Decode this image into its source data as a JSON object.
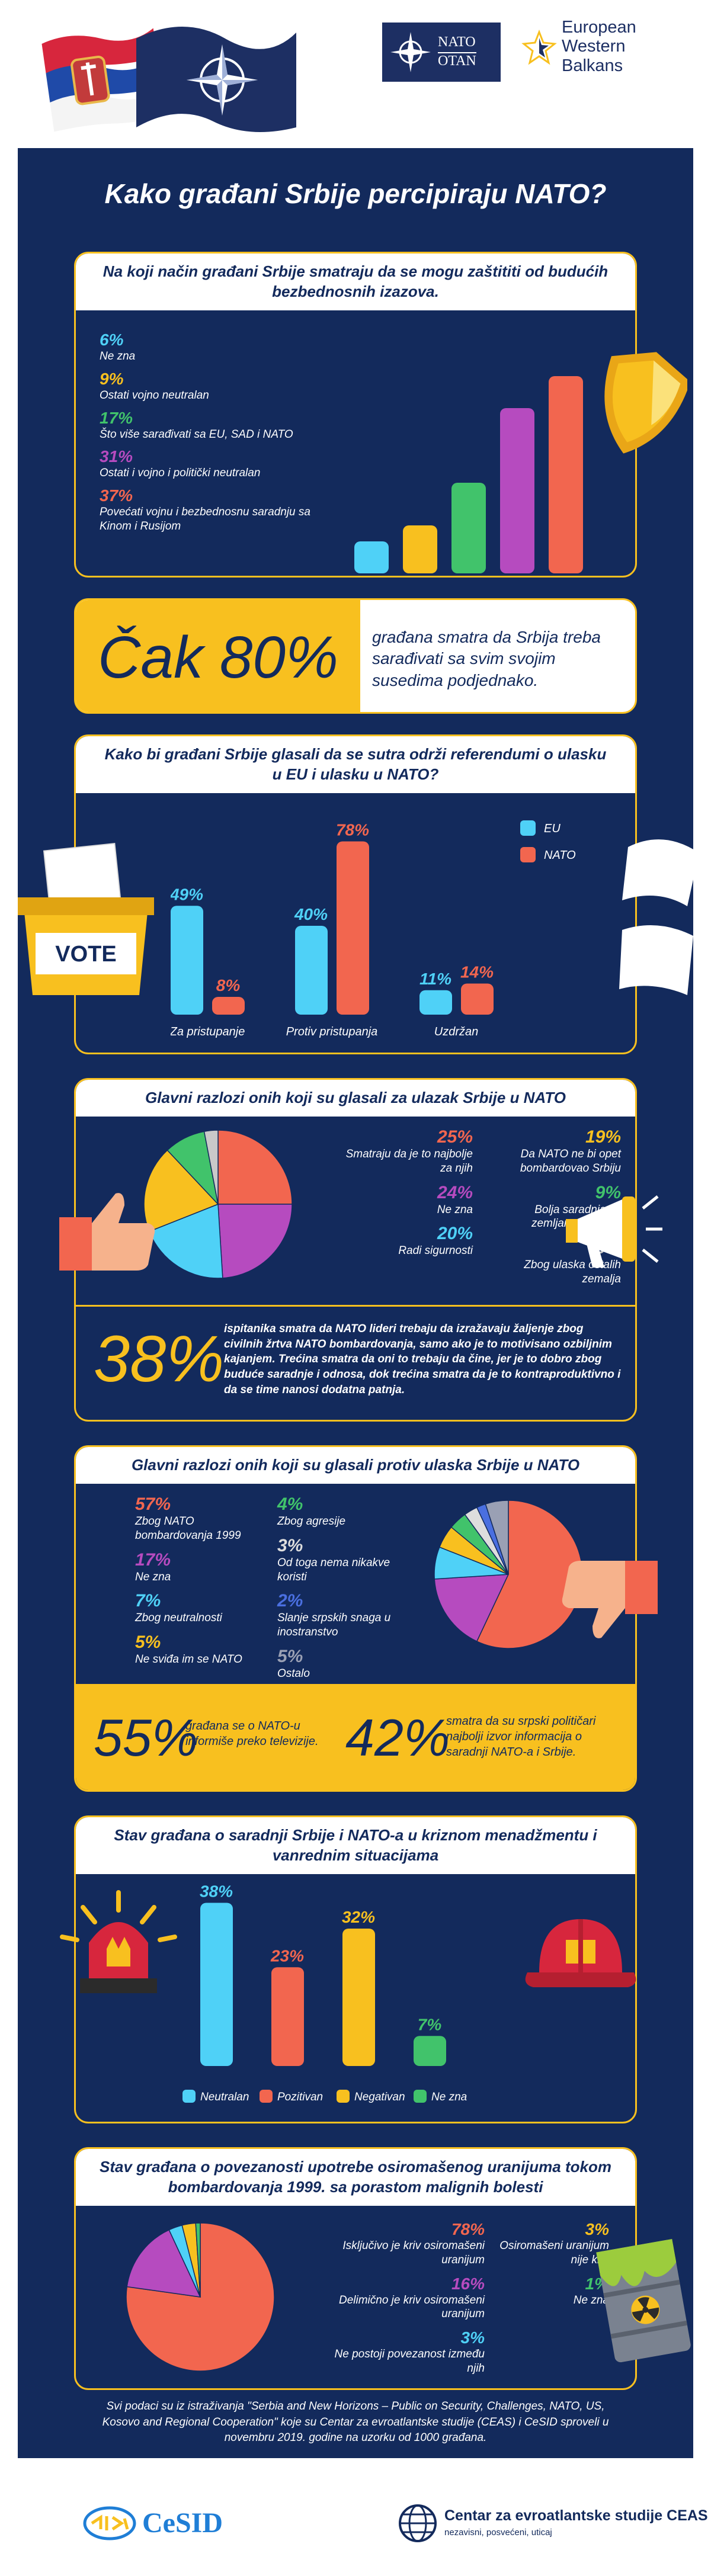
{
  "header": {
    "nato_en": "NATO",
    "nato_fr": "OTAN",
    "ewb": [
      "European",
      "Western",
      "Balkans"
    ]
  },
  "title": "Kako građani Srbije percipiraju NATO?",
  "colors": {
    "navy": "#132a5c",
    "yellow": "#f8c01f",
    "blue": "#4fd1f7",
    "red": "#f2664f",
    "purple": "#b64bbf",
    "green": "#41c36b"
  },
  "security": {
    "title": "Na koji način građani Srbije smatraju da se mogu zaštititi od budućih bezbednosnih izazova.",
    "items": [
      {
        "pct": "6%",
        "label": "Ne zna",
        "value": 6,
        "color": "#4fd1f7"
      },
      {
        "pct": "9%",
        "label": "Ostati vojno neutralan",
        "value": 9,
        "color": "#f8c01f"
      },
      {
        "pct": "17%",
        "label": "Što više sarađivati sa EU, SAD i NATO",
        "value": 17,
        "color": "#41c36b"
      },
      {
        "pct": "31%",
        "label": "Ostati i vojno i politički neutralan",
        "value": 31,
        "color": "#b64bbf"
      },
      {
        "pct": "37%",
        "label": "Povećati vojnu i bezbednosnu saradnju sa Kinom i Rusijom",
        "value": 37,
        "color": "#f2664f"
      }
    ]
  },
  "neighbors": {
    "big": "Čak 80%",
    "text": "građana smatra da Srbija treba sarađivati sa svim svojim susedima podjednako."
  },
  "referendum": {
    "title": "Kako bi građani Srbije glasali da se sutra održi referendumi o ulasku u EU i ulasku u NATO?",
    "legend": [
      {
        "label": "EU",
        "color": "#4fd1f7"
      },
      {
        "label": "NATO",
        "color": "#f2664f"
      }
    ],
    "vote": "VOTE",
    "groups": [
      {
        "label": "Za pristupanje",
        "eu": 49,
        "nato": 8,
        "eu_label": "49%",
        "nato_label": "8%"
      },
      {
        "label": "Protiv pristupanja",
        "eu": 40,
        "nato": 78,
        "eu_label": "40%",
        "nato_label": "78%"
      },
      {
        "label": "Uzdržan",
        "eu": 11,
        "nato": 14,
        "eu_label": "11%",
        "nato_label": "14%"
      }
    ]
  },
  "for_reasons": {
    "title": "Glavni razlozi onih koji su glasali za ulazak Srbije u NATO",
    "items": [
      {
        "pct": "25%",
        "label": "Smatraju da je to najbolje za njih",
        "value": 25,
        "color": "#f2664f"
      },
      {
        "pct": "24%",
        "label": "Ne zna",
        "value": 24,
        "color": "#b64bbf"
      },
      {
        "pct": "20%",
        "label": "Radi sigurnosti",
        "value": 20,
        "color": "#4fd1f7"
      },
      {
        "pct": "19%",
        "label": "Da NATO ne bi opet bombardovao Srbiju",
        "value": 19,
        "color": "#f8c01f"
      },
      {
        "pct": "9%",
        "label": "Bolja saradnja sa zemljama Zapada",
        "value": 9,
        "color": "#41c36b"
      },
      {
        "pct": "3%",
        "label": "Zbog ulaska ostalih zemalja",
        "value": 3,
        "color": "#c9c9c9"
      }
    ],
    "big": "38%",
    "text": "ispitanika smatra da NATO lideri trebaju da izražavaju žaljenje zbog civilnih žrtva NATO bombardovanja, samo ako je to motivisano ozbiljnim kajanjem. Trećina smatra da oni to trebaju da čine, jer je to dobro zbog buduće saradnje i odnosa, dok trećina smatra da je to kontraproduktivno i da se time nanosi dodatna patnja."
  },
  "against_reasons": {
    "title": "Glavni razlozi onih koji su glasali protiv ulaska Srbije u NATO",
    "items": [
      {
        "pct": "57%",
        "label": "Zbog NATO bombardovanja 1999",
        "value": 57,
        "color": "#f2664f"
      },
      {
        "pct": "17%",
        "label": "Ne zna",
        "value": 17,
        "color": "#b64bbf"
      },
      {
        "pct": "7%",
        "label": "Zbog neutralnosti",
        "value": 7,
        "color": "#4fd1f7"
      },
      {
        "pct": "5%",
        "label": "Ne sviđa im se NATO",
        "value": 5,
        "color": "#f8c01f"
      },
      {
        "pct": "4%",
        "label": "Zbog agresije",
        "value": 4,
        "color": "#41c36b"
      },
      {
        "pct": "3%",
        "label": "Od toga nema nikakve koristi",
        "value": 3,
        "color": "#dddddd"
      },
      {
        "pct": "2%",
        "label": "Slanje srpskih snaga u inostranstvo",
        "value": 2,
        "color": "#4a6fe0"
      },
      {
        "pct": "5%",
        "label": "Ostalo",
        "value": 5,
        "color": "#9aa0b4"
      }
    ],
    "stat1_big": "55%",
    "stat1_text": "građana se o NATO-u informiše preko televizije.",
    "stat2_big": "42%",
    "stat2_text": "smatra da su srpski političari najbolji izvor informacija o saradnji NATO-a i Srbije."
  },
  "crisis": {
    "title": "Stav građana o saradnji Srbije i NATO-a u kriznom menadžmentu i vanrednim situacijama",
    "bars": [
      {
        "label": "Neutralan",
        "value": 38,
        "pct": "38%",
        "color": "#4fd1f7"
      },
      {
        "label": "Pozitivan",
        "value": 23,
        "pct": "23%",
        "color": "#f2664f"
      },
      {
        "label": "Negativan",
        "value": 32,
        "pct": "32%",
        "color": "#f8c01f"
      },
      {
        "label": "Ne zna",
        "value": 7,
        "pct": "7%",
        "color": "#41c36b"
      }
    ]
  },
  "uranium": {
    "title": "Stav građana o povezanosti upotrebe osiromašenog uranijuma tokom bombardovanja 1999. sa porastom malignih bolesti",
    "items": [
      {
        "pct": "78%",
        "label": "Isključivo je kriv osiromašeni uranijum",
        "value": 78,
        "color": "#f2664f"
      },
      {
        "pct": "16%",
        "label": "Delimično je kriv osiromašeni uranijum",
        "value": 16,
        "color": "#b64bbf"
      },
      {
        "pct": "3%",
        "label": "Ne postoji povezanost između njih",
        "value": 3,
        "color": "#4fd1f7"
      },
      {
        "pct": "3%",
        "label": "Osiromašeni uranijum nije kriv",
        "value": 3,
        "color": "#f8c01f"
      },
      {
        "pct": "1%",
        "label": "Ne zna",
        "value": 1,
        "color": "#41c36b"
      }
    ]
  },
  "source": "Svi podaci su iz istraživanja \"Serbia and New Horizons – Public on Security, Challenges, NATO, US, Kosovo and Regional Cooperation\" koje su Centar za evroatlantske studije (CEAS) i CeSID sproveli u novembru 2019. godine na uzorku od 1000 građana.",
  "footer": {
    "cesid": "CeSID",
    "ceas": "Centar za evroatlantske studije CEAS",
    "ceas_sub": "nezavisni, posvećeni, uticaj"
  }
}
